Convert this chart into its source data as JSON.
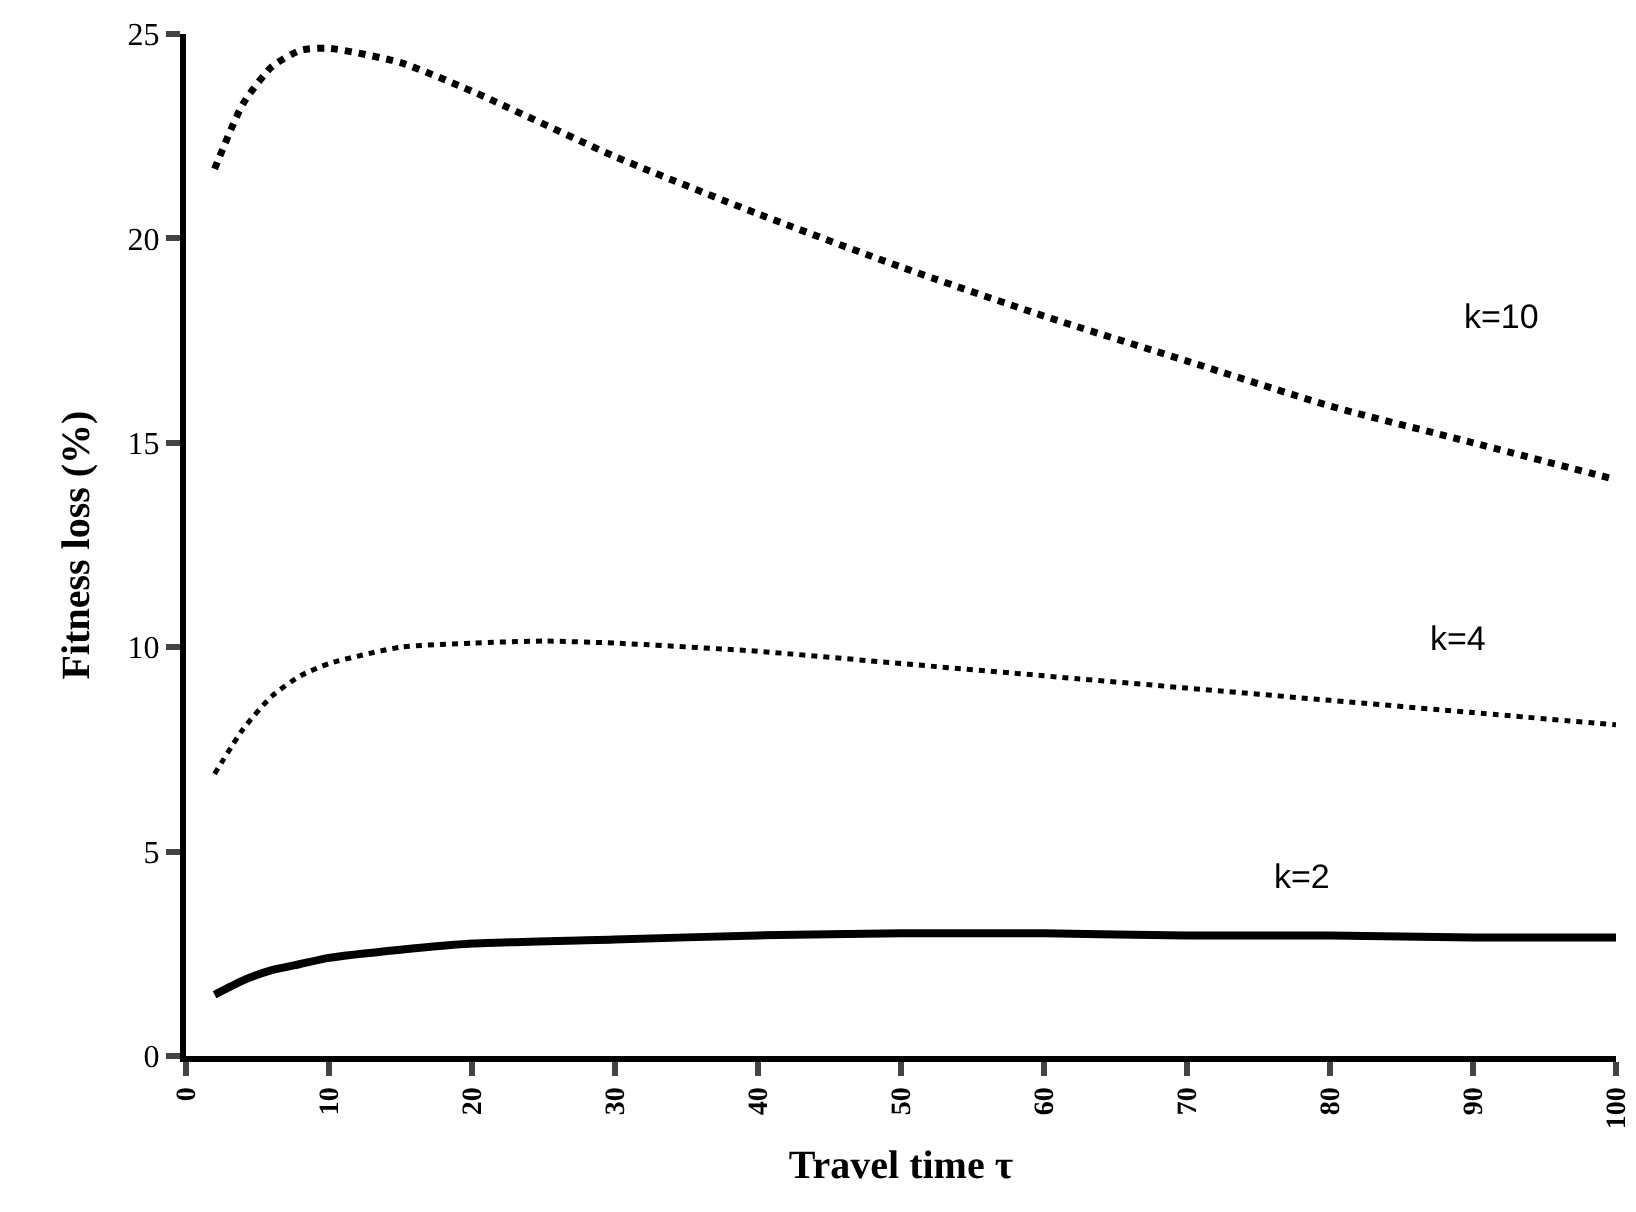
{
  "chart_data": {
    "type": "line",
    "xlabel": "Travel time τ",
    "ylabel": "Fitness loss (%)",
    "xlim": [
      0,
      100
    ],
    "xticks": [
      0,
      10,
      20,
      30,
      40,
      50,
      60,
      70,
      80,
      90,
      100
    ],
    "ylim": [
      0,
      25
    ],
    "yticks": [
      0,
      5,
      10,
      15,
      20,
      25
    ],
    "grid": false,
    "legend": false,
    "marker": "none",
    "series": [
      {
        "name": "k=10",
        "color": "#000000",
        "line_style": "dotted",
        "x": [
          2,
          4,
          6,
          8,
          10,
          15,
          20,
          30,
          40,
          50,
          60,
          70,
          80,
          90,
          100
        ],
        "values": [
          21.7,
          23.3,
          24.2,
          24.6,
          24.65,
          24.3,
          23.6,
          22.0,
          20.6,
          19.3,
          18.1,
          17.0,
          15.9,
          15.0,
          14.1
        ]
      },
      {
        "name": "k=4",
        "color": "#000000",
        "line_style": "dotted",
        "x": [
          2,
          4,
          6,
          8,
          10,
          15,
          20,
          25,
          30,
          40,
          50,
          60,
          70,
          80,
          90,
          100
        ],
        "values": [
          6.9,
          8.0,
          8.8,
          9.3,
          9.6,
          10.0,
          10.1,
          10.15,
          10.1,
          9.9,
          9.6,
          9.3,
          9.0,
          8.7,
          8.4,
          8.1
        ]
      },
      {
        "name": "k=2",
        "color": "#000000",
        "line_style": "solid",
        "x": [
          2,
          4,
          6,
          8,
          10,
          15,
          20,
          30,
          40,
          50,
          60,
          70,
          80,
          90,
          100
        ],
        "values": [
          1.5,
          1.85,
          2.1,
          2.25,
          2.4,
          2.6,
          2.75,
          2.85,
          2.95,
          3.0,
          3.0,
          2.95,
          2.95,
          2.9,
          2.9
        ]
      }
    ]
  }
}
